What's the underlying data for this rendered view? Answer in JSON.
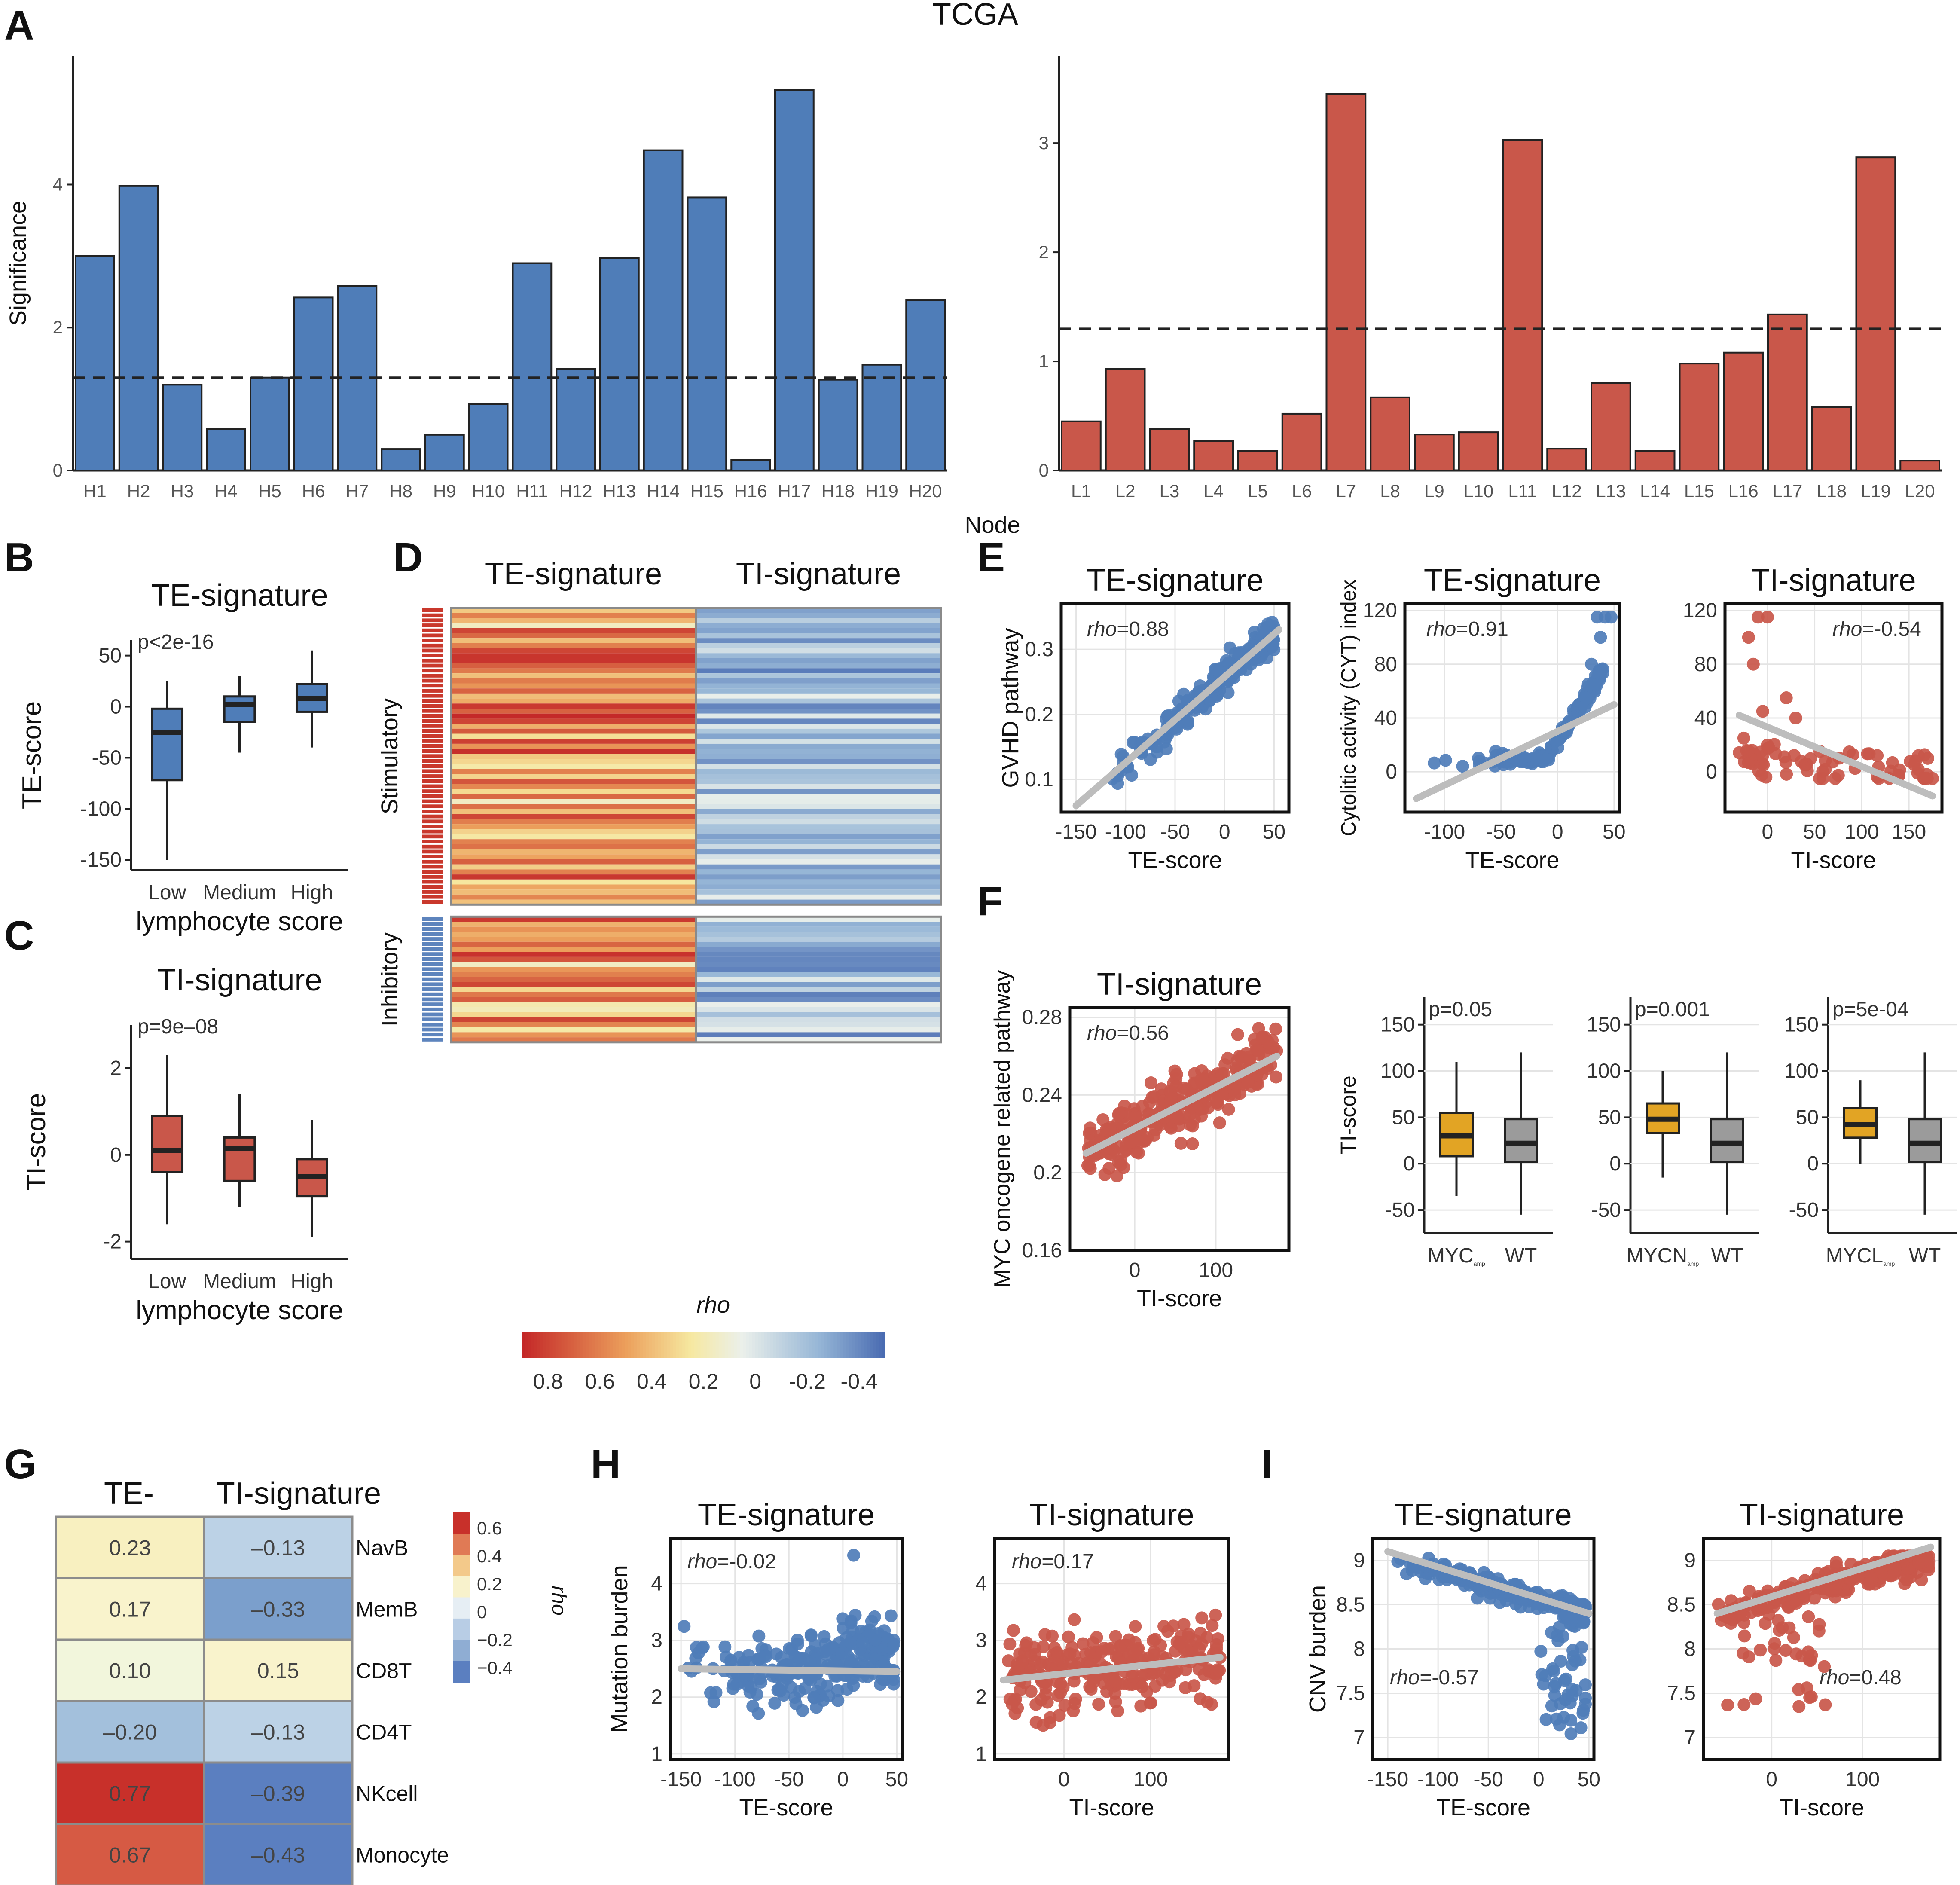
{
  "figure_title": "TCGA",
  "panel_labels": [
    "A",
    "B",
    "C",
    "D",
    "E",
    "F",
    "G",
    "H",
    "I"
  ],
  "colors": {
    "blue": "#4f7db8",
    "red": "#c9574a",
    "gold": "#e2a424",
    "gray": "#9b9b9b",
    "fit": "#bdbdbd"
  },
  "chart_data": [
    {
      "id": "A-high",
      "type": "bar",
      "ylabel": "Significance",
      "xlabel": "Node",
      "categories": [
        "H1",
        "H2",
        "H3",
        "H4",
        "H5",
        "H6",
        "H7",
        "H8",
        "H9",
        "H10",
        "H11",
        "H12",
        "H13",
        "H14",
        "H15",
        "H16",
        "H17",
        "H18",
        "H19",
        "H20"
      ],
      "values": [
        3.0,
        3.98,
        1.2,
        0.58,
        1.3,
        2.42,
        2.58,
        0.3,
        0.5,
        0.93,
        2.9,
        1.42,
        2.97,
        4.48,
        3.82,
        0.15,
        5.32,
        1.27,
        1.48,
        2.38
      ],
      "threshold": 1.3,
      "ylim": [
        0,
        5.8
      ],
      "yticks": [
        0,
        2,
        4
      ],
      "color": "#4f7db8"
    },
    {
      "id": "A-low",
      "type": "bar",
      "ylabel": "",
      "xlabel": "Node",
      "categories": [
        "L1",
        "L2",
        "L3",
        "L4",
        "L5",
        "L6",
        "L7",
        "L8",
        "L9",
        "L10",
        "L11",
        "L12",
        "L13",
        "L14",
        "L15",
        "L16",
        "L17",
        "L18",
        "L19",
        "L20"
      ],
      "values": [
        0.45,
        0.93,
        0.38,
        0.27,
        0.18,
        0.52,
        3.45,
        0.67,
        0.33,
        0.35,
        3.03,
        0.2,
        0.8,
        0.18,
        0.98,
        1.08,
        1.43,
        0.58,
        2.87,
        0.09
      ],
      "threshold": 1.3,
      "ylim": [
        0,
        3.8
      ],
      "yticks": [
        0,
        1,
        2,
        3
      ],
      "color": "#c9574a"
    },
    {
      "id": "B",
      "type": "box",
      "title": "TE-signature",
      "annotation": "p<2e-16",
      "ylabel": "TE-score",
      "xlabel": "lymphocyte score",
      "categories": [
        "Low",
        "Medium",
        "High"
      ],
      "boxes": [
        [
          -150,
          -72,
          -25,
          -2,
          25
        ],
        [
          -45,
          -15,
          2,
          10,
          30
        ],
        [
          -40,
          -5,
          8,
          22,
          55
        ]
      ],
      "ylim": [
        -160,
        65
      ],
      "yticks": [
        -150,
        -100,
        -50,
        0,
        50
      ],
      "color": "#4f7db8"
    },
    {
      "id": "C",
      "type": "box",
      "title": "TI-signature",
      "annotation": "p=9e–08",
      "ylabel": "TI-score",
      "xlabel": "lymphocyte score",
      "categories": [
        "Low",
        "Medium",
        "High"
      ],
      "boxes": [
        [
          -1.6,
          -0.4,
          0.1,
          0.9,
          2.3
        ],
        [
          -1.2,
          -0.6,
          0.15,
          0.4,
          1.4
        ],
        [
          -1.9,
          -0.95,
          -0.5,
          -0.1,
          0.8
        ]
      ],
      "ylim": [
        -2.4,
        3.0
      ],
      "yticks": [
        -2,
        0,
        2
      ],
      "color": "#c9574a"
    },
    {
      "id": "D",
      "type": "heatmap",
      "columns": [
        "TE-signature",
        "TI-signature"
      ],
      "row_groups": [
        {
          "name": "Stimulatory",
          "rows": 59,
          "color": "#c9382c"
        },
        {
          "name": "Inhibitory",
          "rows": 25,
          "color": "#5d84bd"
        }
      ],
      "legend_title": "rho",
      "legend_ticks": [
        "0.8",
        "0.6",
        "0.4",
        "0.2",
        "0",
        "-0.2",
        "-0.4"
      ],
      "value_range": [
        -0.5,
        0.9
      ]
    },
    {
      "id": "E1",
      "type": "scatter",
      "title": "TE-signature",
      "annotation": "=0.88",
      "xlabel": "TE-score",
      "ylabel": "GVHD pathway",
      "xlim": [
        -165,
        65
      ],
      "ylim": [
        0.05,
        0.37
      ],
      "xticks": [
        -150,
        -100,
        -50,
        0,
        50
      ],
      "yticks": [
        0.1,
        0.2,
        0.3
      ],
      "fit": [
        [
          -150,
          0.06
        ],
        [
          55,
          0.33
        ]
      ],
      "color": "#4f7db8",
      "rho": 0.88
    },
    {
      "id": "E2",
      "type": "scatter",
      "title": "TE-signature",
      "annotation": "=0.91",
      "xlabel": "TE-score",
      "ylabel": "Cytolitic activity (CYT) index",
      "xlim": [
        -135,
        55
      ],
      "ylim": [
        -30,
        125
      ],
      "xticks": [
        -100,
        -50,
        0,
        50
      ],
      "yticks": [
        0,
        40,
        80,
        120
      ],
      "fit": [
        [
          -125,
          -20
        ],
        [
          50,
          50
        ]
      ],
      "color": "#4f7db8",
      "rho": 0.91
    },
    {
      "id": "E3",
      "type": "scatter",
      "title": "TI-signature",
      "annotation": "=-0.54",
      "xlabel": "TI-score",
      "ylabel": "",
      "xlim": [
        -45,
        185
      ],
      "ylim": [
        -30,
        125
      ],
      "xticks": [
        0,
        50,
        100,
        150
      ],
      "yticks": [
        0,
        40,
        80,
        120
      ],
      "fit": [
        [
          -30,
          42
        ],
        [
          175,
          -18
        ]
      ],
      "color": "#c9574a",
      "rho": -0.54
    },
    {
      "id": "F1",
      "type": "scatter",
      "title": "TI-signature",
      "annotation": "=0.56",
      "xlabel": "TI-score",
      "ylabel": "MYC oncogene related pathway",
      "xlim": [
        -80,
        190
      ],
      "ylim": [
        0.16,
        0.285
      ],
      "xticks": [
        0,
        100
      ],
      "yticks": [
        0.16,
        0.2,
        0.24,
        0.28
      ],
      "fit": [
        [
          -60,
          0.21
        ],
        [
          175,
          0.26
        ]
      ],
      "color": "#c9574a",
      "rho": 0.56
    },
    {
      "id": "F2",
      "type": "box",
      "annotation": "p=0.05",
      "ylabel": "TI-score",
      "categories": [
        "MYC",
        "WT"
      ],
      "subscript": "amp",
      "boxes": [
        [
          -35,
          8,
          30,
          55,
          110
        ],
        [
          -55,
          2,
          22,
          48,
          120
        ]
      ],
      "ylim": [
        -75,
        180
      ],
      "yticks": [
        -50,
        0,
        50,
        100,
        150
      ],
      "colors": [
        "#e2a424",
        "#9b9b9b"
      ]
    },
    {
      "id": "F3",
      "type": "box",
      "annotation": "p=0.001",
      "ylabel": "",
      "categories": [
        "MYCN",
        "WT"
      ],
      "subscript": "amp",
      "boxes": [
        [
          -15,
          33,
          48,
          65,
          100
        ],
        [
          -55,
          2,
          22,
          48,
          120
        ]
      ],
      "ylim": [
        -75,
        180
      ],
      "yticks": [
        -50,
        0,
        50,
        100,
        150
      ],
      "colors": [
        "#e2a424",
        "#9b9b9b"
      ]
    },
    {
      "id": "F4",
      "type": "box",
      "annotation": "p=5e-04",
      "ylabel": "",
      "categories": [
        "MYCL",
        "WT"
      ],
      "subscript": "amp",
      "boxes": [
        [
          0,
          28,
          42,
          60,
          90
        ],
        [
          -55,
          2,
          22,
          48,
          120
        ]
      ],
      "ylim": [
        -75,
        180
      ],
      "yticks": [
        -50,
        0,
        50,
        100,
        150
      ],
      "colors": [
        "#e2a424",
        "#9b9b9b"
      ]
    },
    {
      "id": "G",
      "type": "heatmap",
      "columns": [
        "TE-",
        "TI-signature"
      ],
      "rows": [
        "NavB",
        "MemB",
        "CD8T",
        "CD4T",
        "NKcell",
        "Monocyte"
      ],
      "values": [
        [
          "0.23",
          "–0.13"
        ],
        [
          "0.17",
          "–0.33"
        ],
        [
          "0.10",
          "0.15"
        ],
        [
          "–0.20",
          "–0.13"
        ],
        [
          "0.77",
          "–0.39"
        ],
        [
          "0.67",
          "–0.43"
        ]
      ],
      "numeric": [
        [
          0.23,
          -0.13
        ],
        [
          0.17,
          -0.33
        ],
        [
          0.1,
          0.15
        ],
        [
          -0.2,
          -0.13
        ],
        [
          0.77,
          -0.39
        ],
        [
          0.67,
          -0.43
        ]
      ],
      "legend_title": "rho",
      "legend_ticks": [
        "0.6",
        "0.4",
        "0.2",
        "0",
        "−0.2",
        "−0.4"
      ]
    },
    {
      "id": "H1",
      "type": "scatter",
      "title": "TE-signature",
      "annotation": "=-0.02",
      "xlabel": "TE-score",
      "ylabel": "Mutation burden",
      "xlim": [
        -160,
        55
      ],
      "ylim": [
        0.9,
        4.8
      ],
      "xticks": [
        -150,
        -100,
        -50,
        0,
        50
      ],
      "yticks": [
        1,
        2,
        3,
        4
      ],
      "fit": [
        [
          -150,
          2.5
        ],
        [
          50,
          2.45
        ]
      ],
      "color": "#4f7db8",
      "rho": -0.02
    },
    {
      "id": "H2",
      "type": "scatter",
      "title": "TI-signature",
      "annotation": "=0.17",
      "xlabel": "TI-score",
      "ylabel": "",
      "xlim": [
        -80,
        190
      ],
      "ylim": [
        0.9,
        4.8
      ],
      "xticks": [
        0,
        100
      ],
      "yticks": [
        1,
        2,
        3,
        4
      ],
      "fit": [
        [
          -70,
          2.3
        ],
        [
          180,
          2.7
        ]
      ],
      "color": "#c9574a",
      "rho": 0.17
    },
    {
      "id": "I1",
      "type": "scatter",
      "title": "TE-signature",
      "annotation": "=-0.57",
      "xlabel": "TE-score",
      "ylabel": "CNV burden",
      "xlim": [
        -165,
        55
      ],
      "ylim": [
        6.75,
        9.25
      ],
      "xticks": [
        -150,
        -100,
        -50,
        0,
        50
      ],
      "yticks": [
        7.0,
        7.5,
        8.0,
        8.5,
        9.0
      ],
      "fit": [
        [
          -150,
          9.1
        ],
        [
          50,
          8.4
        ]
      ],
      "color": "#4f7db8",
      "rho": -0.57
    },
    {
      "id": "I2",
      "type": "scatter",
      "title": "TI-signature",
      "annotation": "=0.48",
      "xlabel": "TI-score",
      "ylabel": "",
      "xlim": [
        -75,
        185
      ],
      "ylim": [
        6.75,
        9.25
      ],
      "xticks": [
        0,
        100
      ],
      "yticks": [
        7.0,
        7.5,
        8.0,
        8.5,
        9.0
      ],
      "fit": [
        [
          -60,
          8.4
        ],
        [
          175,
          9.15
        ]
      ],
      "color": "#c9574a",
      "rho": 0.48
    }
  ]
}
